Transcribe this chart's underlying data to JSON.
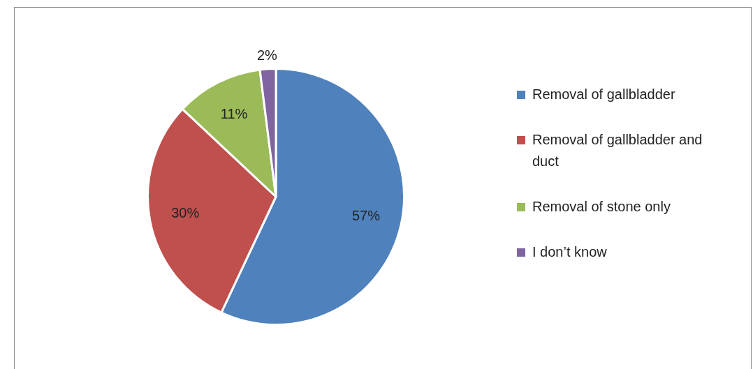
{
  "chart_data": {
    "type": "pie",
    "categories": [
      "Removal of gallbladder",
      "Removal of gallbladder and duct",
      "Removal of stone only",
      "I don’t know"
    ],
    "values": [
      57,
      30,
      11,
      2
    ],
    "colors": [
      "#4f81bd",
      "#c0504d",
      "#9bbb59",
      "#8064a2"
    ],
    "value_labels": [
      "57%",
      "30%",
      "11%",
      "2%"
    ],
    "legend": "right"
  }
}
